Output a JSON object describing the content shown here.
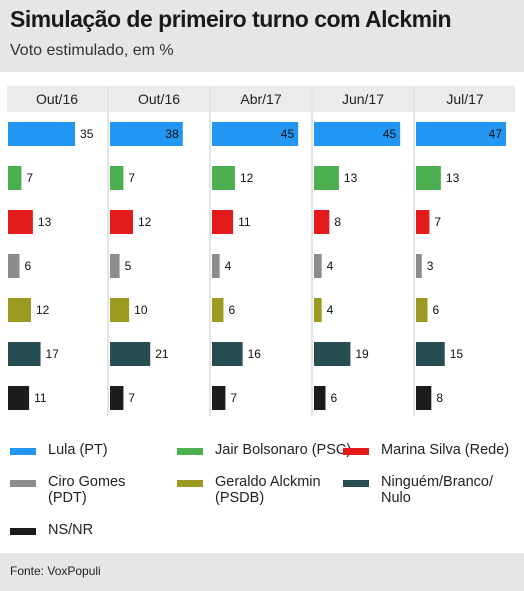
{
  "header": {
    "title": "Simulação de primeiro turno com Alckmin",
    "subtitle": "Voto estimulado, em %"
  },
  "chart_data": {
    "type": "bar",
    "orientation": "horizontal-small-multiples",
    "categories": [
      "Out/16",
      "Out/16",
      "Abr/17",
      "Jun/17",
      "Jul/17"
    ],
    "series": [
      {
        "name": "Lula (PT)",
        "color": "#2196f3",
        "values": [
          35,
          38,
          45,
          45,
          47
        ]
      },
      {
        "name": "Jair Bolsonaro (PSC)",
        "color": "#4caf50",
        "values": [
          7,
          7,
          12,
          13,
          13
        ]
      },
      {
        "name": "Marina Silva (Rede)",
        "color": "#e31b1b",
        "values": [
          13,
          12,
          11,
          8,
          7
        ]
      },
      {
        "name": "Ciro Gomes (PDT)",
        "color": "#8c8c8c",
        "values": [
          6,
          5,
          4,
          4,
          3
        ]
      },
      {
        "name": "Geraldo Alckmin (PSDB)",
        "color": "#9c9a21",
        "values": [
          12,
          10,
          6,
          4,
          6
        ]
      },
      {
        "name": "Ninguém/Branco/Nulo",
        "color": "#264d52",
        "values": [
          17,
          21,
          16,
          19,
          15
        ]
      },
      {
        "name": "NS/NR",
        "color": "#1c1c1c",
        "values": [
          11,
          7,
          7,
          6,
          8
        ]
      }
    ],
    "inside_label_min": 38,
    "xlim": [
      0,
      47
    ],
    "grid": false,
    "legend": "bottom"
  },
  "legend": {
    "items": [
      {
        "label": "Lula (PT)",
        "color": "#2196f3"
      },
      {
        "label": "Jair Bolsonaro (PSC)",
        "color": "#4caf50"
      },
      {
        "label": "Marina Silva (Rede)",
        "color": "#e31b1b"
      },
      {
        "label": "Ciro Gomes\n(PDT)",
        "color": "#8c8c8c"
      },
      {
        "label": "Geraldo Alckmin\n(PSDB)",
        "color": "#9c9a21"
      },
      {
        "label": "Ninguém/Branco/\nNulo",
        "color": "#264d52"
      },
      {
        "label": "NS/NR",
        "color": "#1c1c1c"
      }
    ]
  },
  "footer": {
    "source": "Fonte: VoxPopuli"
  }
}
